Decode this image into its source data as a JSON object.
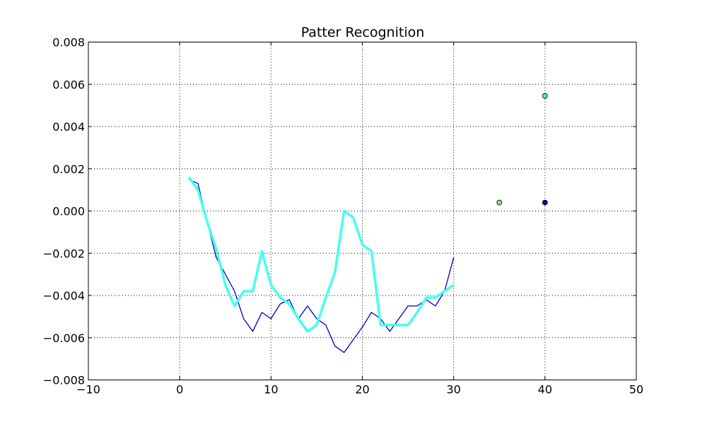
{
  "chart_data": {
    "type": "line",
    "title": "Patter Recognition",
    "xlabel": "",
    "ylabel": "",
    "xlim": [
      -10,
      50
    ],
    "ylim": [
      -0.008,
      0.008
    ],
    "xticks": [
      -10,
      0,
      10,
      20,
      30,
      40,
      50
    ],
    "yticks": [
      -0.008,
      -0.006,
      -0.004,
      -0.002,
      0.0,
      0.002,
      0.004,
      0.006,
      0.008
    ],
    "xtick_labels": [
      "−10",
      "0",
      "10",
      "20",
      "30",
      "40",
      "50"
    ],
    "ytick_labels": [
      "−0.008",
      "−0.006",
      "−0.004",
      "−0.002",
      "0.000",
      "0.002",
      "0.004",
      "0.006",
      "0.008"
    ],
    "grid": true,
    "series": [
      {
        "color": "#0000bb",
        "width": "thin",
        "x": [
          1,
          2,
          3,
          4,
          5,
          6,
          7,
          8,
          9,
          10,
          11,
          12,
          13,
          14,
          15,
          16,
          17,
          18,
          19,
          20,
          21,
          22,
          23,
          24,
          25,
          26,
          27,
          28,
          29,
          30
        ],
        "y": [
          0.0015,
          0.0013,
          -0.0005,
          -0.0022,
          -0.003,
          -0.0038,
          -0.0051,
          -0.0057,
          -0.0048,
          -0.0051,
          -0.0044,
          -0.0042,
          -0.0051,
          -0.0045,
          -0.0051,
          -0.0054,
          -0.0064,
          -0.0067,
          -0.0061,
          -0.0055,
          -0.0048,
          -0.0051,
          -0.0057,
          -0.0051,
          -0.0045,
          -0.0045,
          -0.0042,
          -0.0045,
          -0.0038,
          -0.0022
        ]
      },
      {
        "color": "#44ffee",
        "width": "thick",
        "x": [
          1,
          2,
          3,
          4,
          5,
          6,
          7,
          8,
          9,
          10,
          11,
          12,
          13,
          14,
          15,
          16,
          17,
          18,
          19,
          20,
          21,
          22,
          23,
          24,
          25,
          26,
          27,
          28,
          29,
          30
        ],
        "y": [
          0.0016,
          0.001,
          -0.0005,
          -0.0018,
          -0.0035,
          -0.0045,
          -0.0038,
          -0.0038,
          -0.0019,
          -0.0035,
          -0.0041,
          -0.0044,
          -0.0051,
          -0.0057,
          -0.0054,
          -0.0041,
          -0.0029,
          0.0,
          -0.0003,
          -0.0016,
          -0.0019,
          -0.0054,
          -0.0054,
          -0.0054,
          -0.0054,
          -0.0048,
          -0.0041,
          -0.0041,
          -0.0038,
          -0.0035
        ]
      }
    ],
    "points": [
      {
        "x": 35,
        "y": 0.0004,
        "color": "#99dd88"
      },
      {
        "x": 40,
        "y": 0.0004,
        "color": "#0000aa"
      },
      {
        "x": 40,
        "y": 0.00545,
        "color": "#44eedd"
      }
    ]
  }
}
